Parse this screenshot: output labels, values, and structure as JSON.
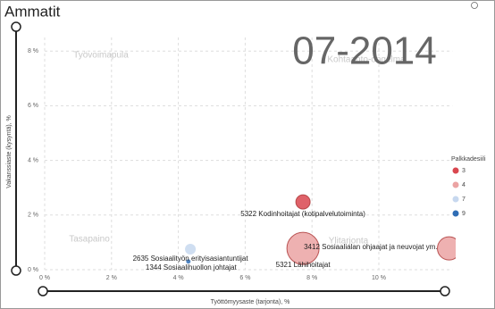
{
  "chart_data": {
    "type": "bubble",
    "title": "Ammatit",
    "period": "07-2014",
    "x_label": "Työttömyysaste (tarjonta), %",
    "y_label": "Vakanssiaste (kysyntä), %",
    "annotations": [
      "Työvoimapula",
      "Kohtaanto-ongelma",
      "Tasapaino",
      "Ylitarjonta"
    ],
    "xlim": [
      0,
      12.2
    ],
    "ylim": [
      0,
      8.5
    ],
    "xticks": [
      {
        "value": 0,
        "label": "0 %"
      },
      {
        "value": 2,
        "label": "2 %"
      },
      {
        "value": 4,
        "label": "4 %"
      },
      {
        "value": 6,
        "label": "6 %"
      },
      {
        "value": 8,
        "label": "8 %"
      },
      {
        "value": 10,
        "label": "10 %"
      }
    ],
    "yticks": [
      {
        "value": 0,
        "label": "0 %"
      },
      {
        "value": 2,
        "label": "2 %"
      },
      {
        "value": 4,
        "label": "4 %"
      },
      {
        "value": 6,
        "label": "6 %"
      },
      {
        "value": 8,
        "label": "8 %"
      }
    ],
    "grid": true,
    "legend_title": "Palkkadesiili",
    "legend_position": "right",
    "series": [
      {
        "name": "3",
        "color": "#d9474f",
        "labels": [
          "5322 Kodinhoitajat (kotipalvelutoiminta)"
        ],
        "x": [
          7.73
        ],
        "values": [
          2.48
        ],
        "sizes": [
          64
        ]
      },
      {
        "name": "4",
        "color": "#eba3a3",
        "labels": [
          "5321 Lähihoitajat",
          "3412 Sosiaalialan ohjaajat ja neuvojat ym."
        ],
        "x": [
          7.73,
          12.1
        ],
        "values": [
          0.78,
          0.78
        ],
        "sizes": [
          324,
          169
        ]
      },
      {
        "name": "7",
        "color": "#c7d8ef",
        "labels": [
          "2635 Sosiaalityön erityisasiantuntijat"
        ],
        "x": [
          4.36
        ],
        "values": [
          0.75
        ],
        "sizes": [
          36
        ]
      },
      {
        "name": "9",
        "color": "#2f6db5",
        "labels": [
          "1344 Sosiaalihuollon johtajat"
        ],
        "x": [
          4.3
        ],
        "values": [
          0.3
        ],
        "sizes": [
          6
        ]
      }
    ]
  }
}
